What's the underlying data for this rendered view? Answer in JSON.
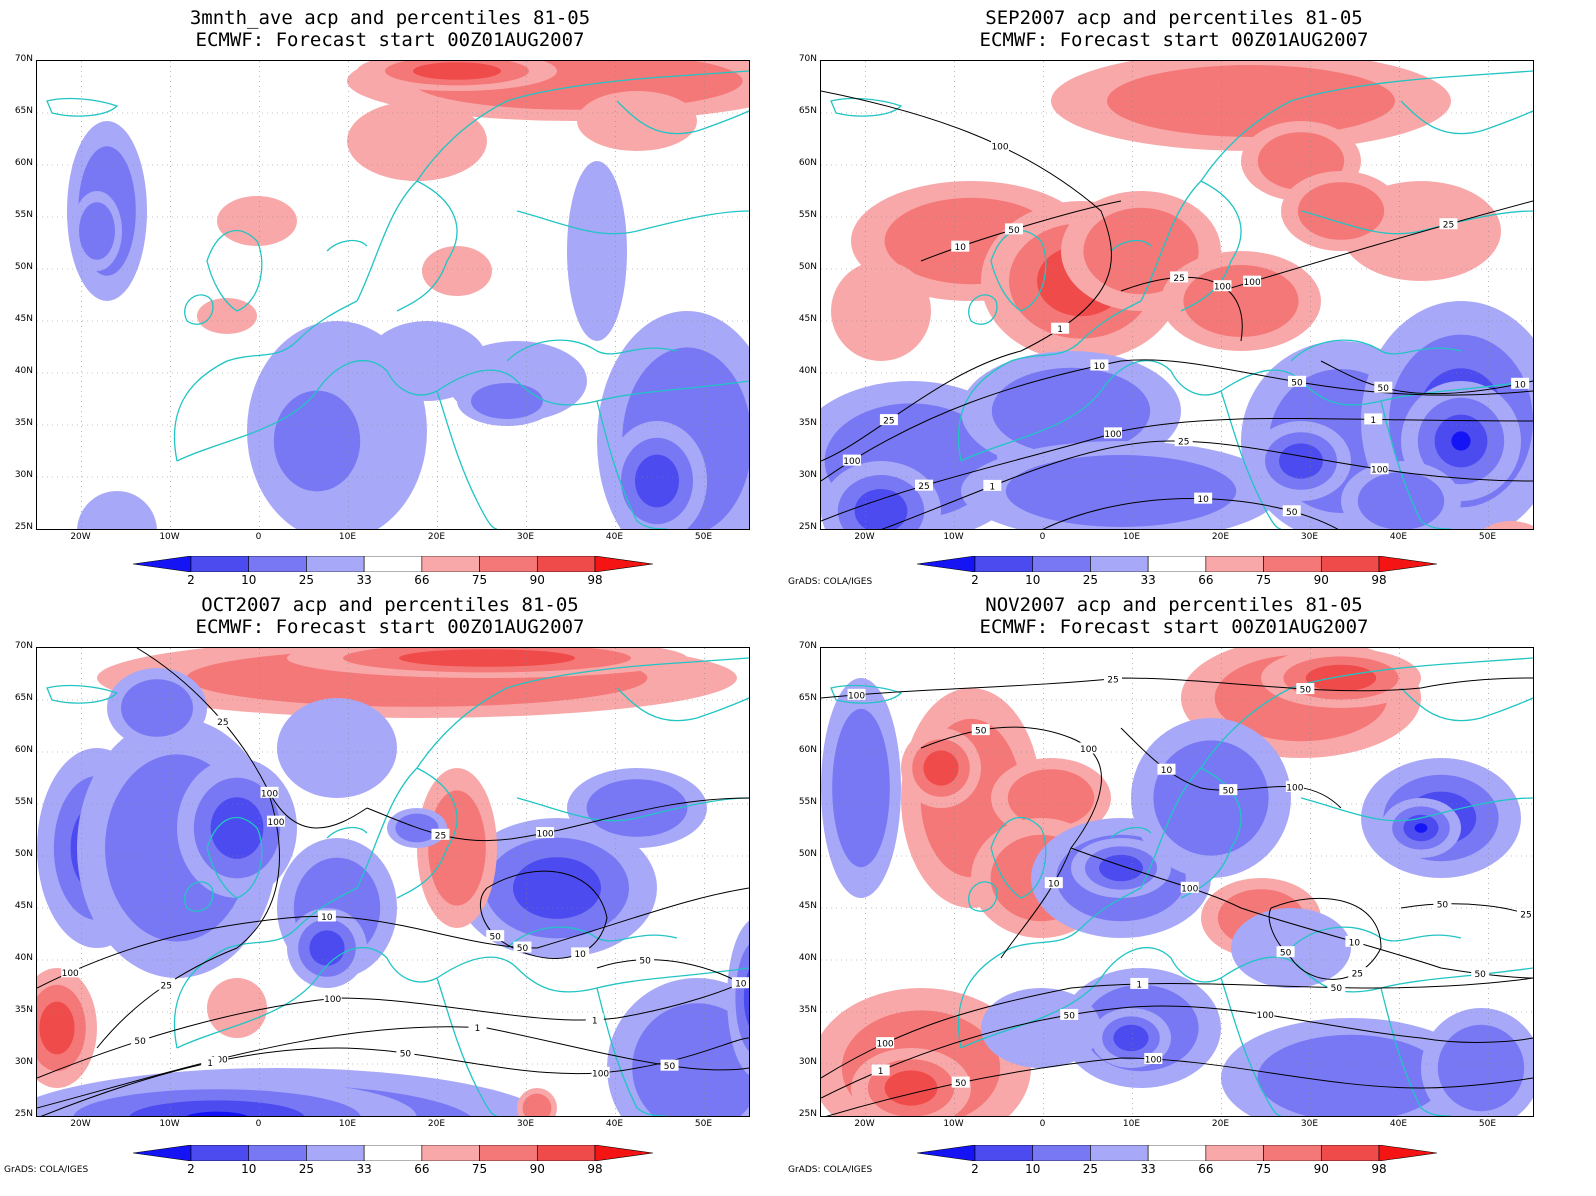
{
  "credit": "GrADS: COLA/IGES",
  "axes": {
    "y_ticks": [
      "70N",
      "65N",
      "60N",
      "55N",
      "50N",
      "45N",
      "40N",
      "35N",
      "30N",
      "25N"
    ],
    "x_ticks": [
      "20W",
      "10W",
      "0",
      "10E",
      "20E",
      "30E",
      "40E",
      "50E"
    ]
  },
  "colorbar": {
    "labels": [
      "2",
      "10",
      "25",
      "33",
      "66",
      "75",
      "90",
      "98"
    ],
    "colors": [
      "#1414f5",
      "#4b4bf0",
      "#7878f5",
      "#a8a8f8",
      "#ffffff",
      "#f8a8a8",
      "#f57878",
      "#f04b4b",
      "#f51414"
    ]
  },
  "colors": {
    "coast": "#22c4c4",
    "contour": "#000000"
  },
  "chart_data": [
    {
      "type": "heatmap",
      "title": "3mnth_ave acp and percentiles 81-05",
      "subtitle": "ECMWF: Forecast start 00Z01AUG2007",
      "xlim": [
        -25,
        55
      ],
      "ylim": [
        25,
        70
      ],
      "contours": []
    },
    {
      "type": "heatmap",
      "title": "SEP2007 acp and percentiles 81-05",
      "subtitle": "ECMWF: Forecast start 00Z01AUG2007",
      "xlim": [
        -25,
        55
      ],
      "ylim": [
        25,
        70
      ],
      "contours": [
        "100",
        "100",
        "100",
        "100",
        "100",
        "100",
        "50",
        "50",
        "50",
        "50",
        "25",
        "25",
        "25",
        "25",
        "25",
        "10",
        "10",
        "10",
        "10",
        "1",
        "1",
        "1"
      ]
    },
    {
      "type": "heatmap",
      "title": "OCT2007 acp and percentiles 81-05",
      "subtitle": "ECMWF: Forecast start 00Z01AUG2007",
      "xlim": [
        -25,
        55
      ],
      "ylim": [
        25,
        70
      ],
      "contours": [
        "100",
        "100",
        "100",
        "100",
        "100",
        "100",
        "100",
        "50",
        "50",
        "50",
        "50",
        "50",
        "50",
        "25",
        "25",
        "25",
        "10",
        "10",
        "10",
        "1",
        "1",
        "1"
      ]
    },
    {
      "type": "heatmap",
      "title": "NOV2007 acp and percentiles 81-05",
      "subtitle": "ECMWF: Forecast start 00Z01AUG2007",
      "xlim": [
        -25,
        55
      ],
      "ylim": [
        25,
        70
      ],
      "contours": [
        "100",
        "100",
        "100",
        "100",
        "100",
        "100",
        "100",
        "50",
        "50",
        "50",
        "50",
        "50",
        "50",
        "50",
        "50",
        "50",
        "25",
        "25",
        "25",
        "10",
        "10",
        "10",
        "1",
        "1"
      ]
    }
  ]
}
